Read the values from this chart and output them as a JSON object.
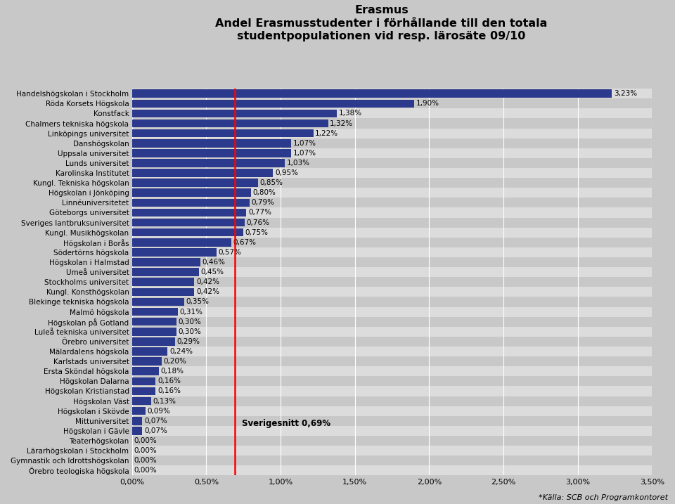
{
  "title_line1": "Erasmus",
  "title_line2": "Andel Erasmusstudenter i förhållande till den totala",
  "title_line3": "studentpopulationen vid resp. lärosäte 09/10",
  "categories": [
    "Handelshögskolan i Stockholm",
    "Röda Korsets Högskola",
    "Konstfack",
    "Chalmers tekniska högskola",
    "Linköpings universitet",
    "Danshögskolan",
    "Uppsala universitet",
    "Lunds universitet",
    "Karolinska Institutet",
    "Kungl. Tekniska högskolan",
    "Högskolan i Jönköping",
    "Linnéuniversitetet",
    "Göteborgs universitet",
    "Sveriges lantbruksuniversitet",
    "Kungl. Musikhögskolan",
    "Högskolan i Borås",
    "Södertörns högskola",
    "Högskolan i Halmstad",
    "Umeå universitet",
    "Stockholms universitet",
    "Kungl. Konsthögskolan",
    "Blekinge tekniska högskola",
    "Malmö högskola",
    "Högskolan på Gotland",
    "Luleå tekniska universitet",
    "Örebro universitet",
    "Mälardalens högskola",
    "Karlstads universitet",
    "Ersta Sköndal högskola",
    "Högskolan Dalarna",
    "Högskolan Kristianstad",
    "Högskolan Väst",
    "Högskolan i Skövde",
    "Mittuniversitet",
    "Högskolan i Gävle",
    "Teaterhögskolan",
    "Lärarhögskolan i Stockholm",
    "Gymnastik och Idrottshögskolan",
    "Örebro teologiska högskola"
  ],
  "values": [
    0.0323,
    0.019,
    0.0138,
    0.0132,
    0.0122,
    0.0107,
    0.0107,
    0.0103,
    0.0095,
    0.0085,
    0.008,
    0.0079,
    0.0077,
    0.0076,
    0.0075,
    0.0067,
    0.0057,
    0.0046,
    0.0045,
    0.0042,
    0.0042,
    0.0035,
    0.0031,
    0.003,
    0.003,
    0.0029,
    0.0024,
    0.002,
    0.0018,
    0.0016,
    0.0016,
    0.0013,
    0.0009,
    0.0007,
    0.0007,
    0.0,
    0.0,
    0.0,
    0.0
  ],
  "labels": [
    "3,23%",
    "1,90%",
    "1,38%",
    "1,32%",
    "1,22%",
    "1,07%",
    "1,07%",
    "1,03%",
    "0,95%",
    "0,85%",
    "0,80%",
    "0,79%",
    "0,77%",
    "0,76%",
    "0,75%",
    "0,67%",
    "0,57%",
    "0,46%",
    "0,45%",
    "0,42%",
    "0,42%",
    "0,35%",
    "0,31%",
    "0,30%",
    "0,30%",
    "0,29%",
    "0,24%",
    "0,20%",
    "0,18%",
    "0,16%",
    "0,16%",
    "0,13%",
    "0,09%",
    "0,07%",
    "0,07%",
    "0,00%",
    "0,00%",
    "0,00%",
    "0,00%"
  ],
  "bar_color": "#2B3A8C",
  "vline_x": 0.0069,
  "vline_color": "red",
  "vline_label": "Sverigesnitt 0,69%",
  "xlim": [
    0,
    0.035
  ],
  "xticks": [
    0.0,
    0.005,
    0.01,
    0.015,
    0.02,
    0.025,
    0.03,
    0.035
  ],
  "xtick_labels": [
    "0,00%",
    "0,50%",
    "1,00%",
    "1,50%",
    "2,00%",
    "2,50%",
    "3,00%",
    "3,50%"
  ],
  "footnote": "*Källa: SCB och Programkontoret",
  "bg_color": "#C8C8C8",
  "plot_bg_color_light": "#D8D8D8",
  "plot_bg_color_dark": "#C0C0C0",
  "row_color_even": "#D4D4D4",
  "row_color_odd": "#C8C8C8"
}
